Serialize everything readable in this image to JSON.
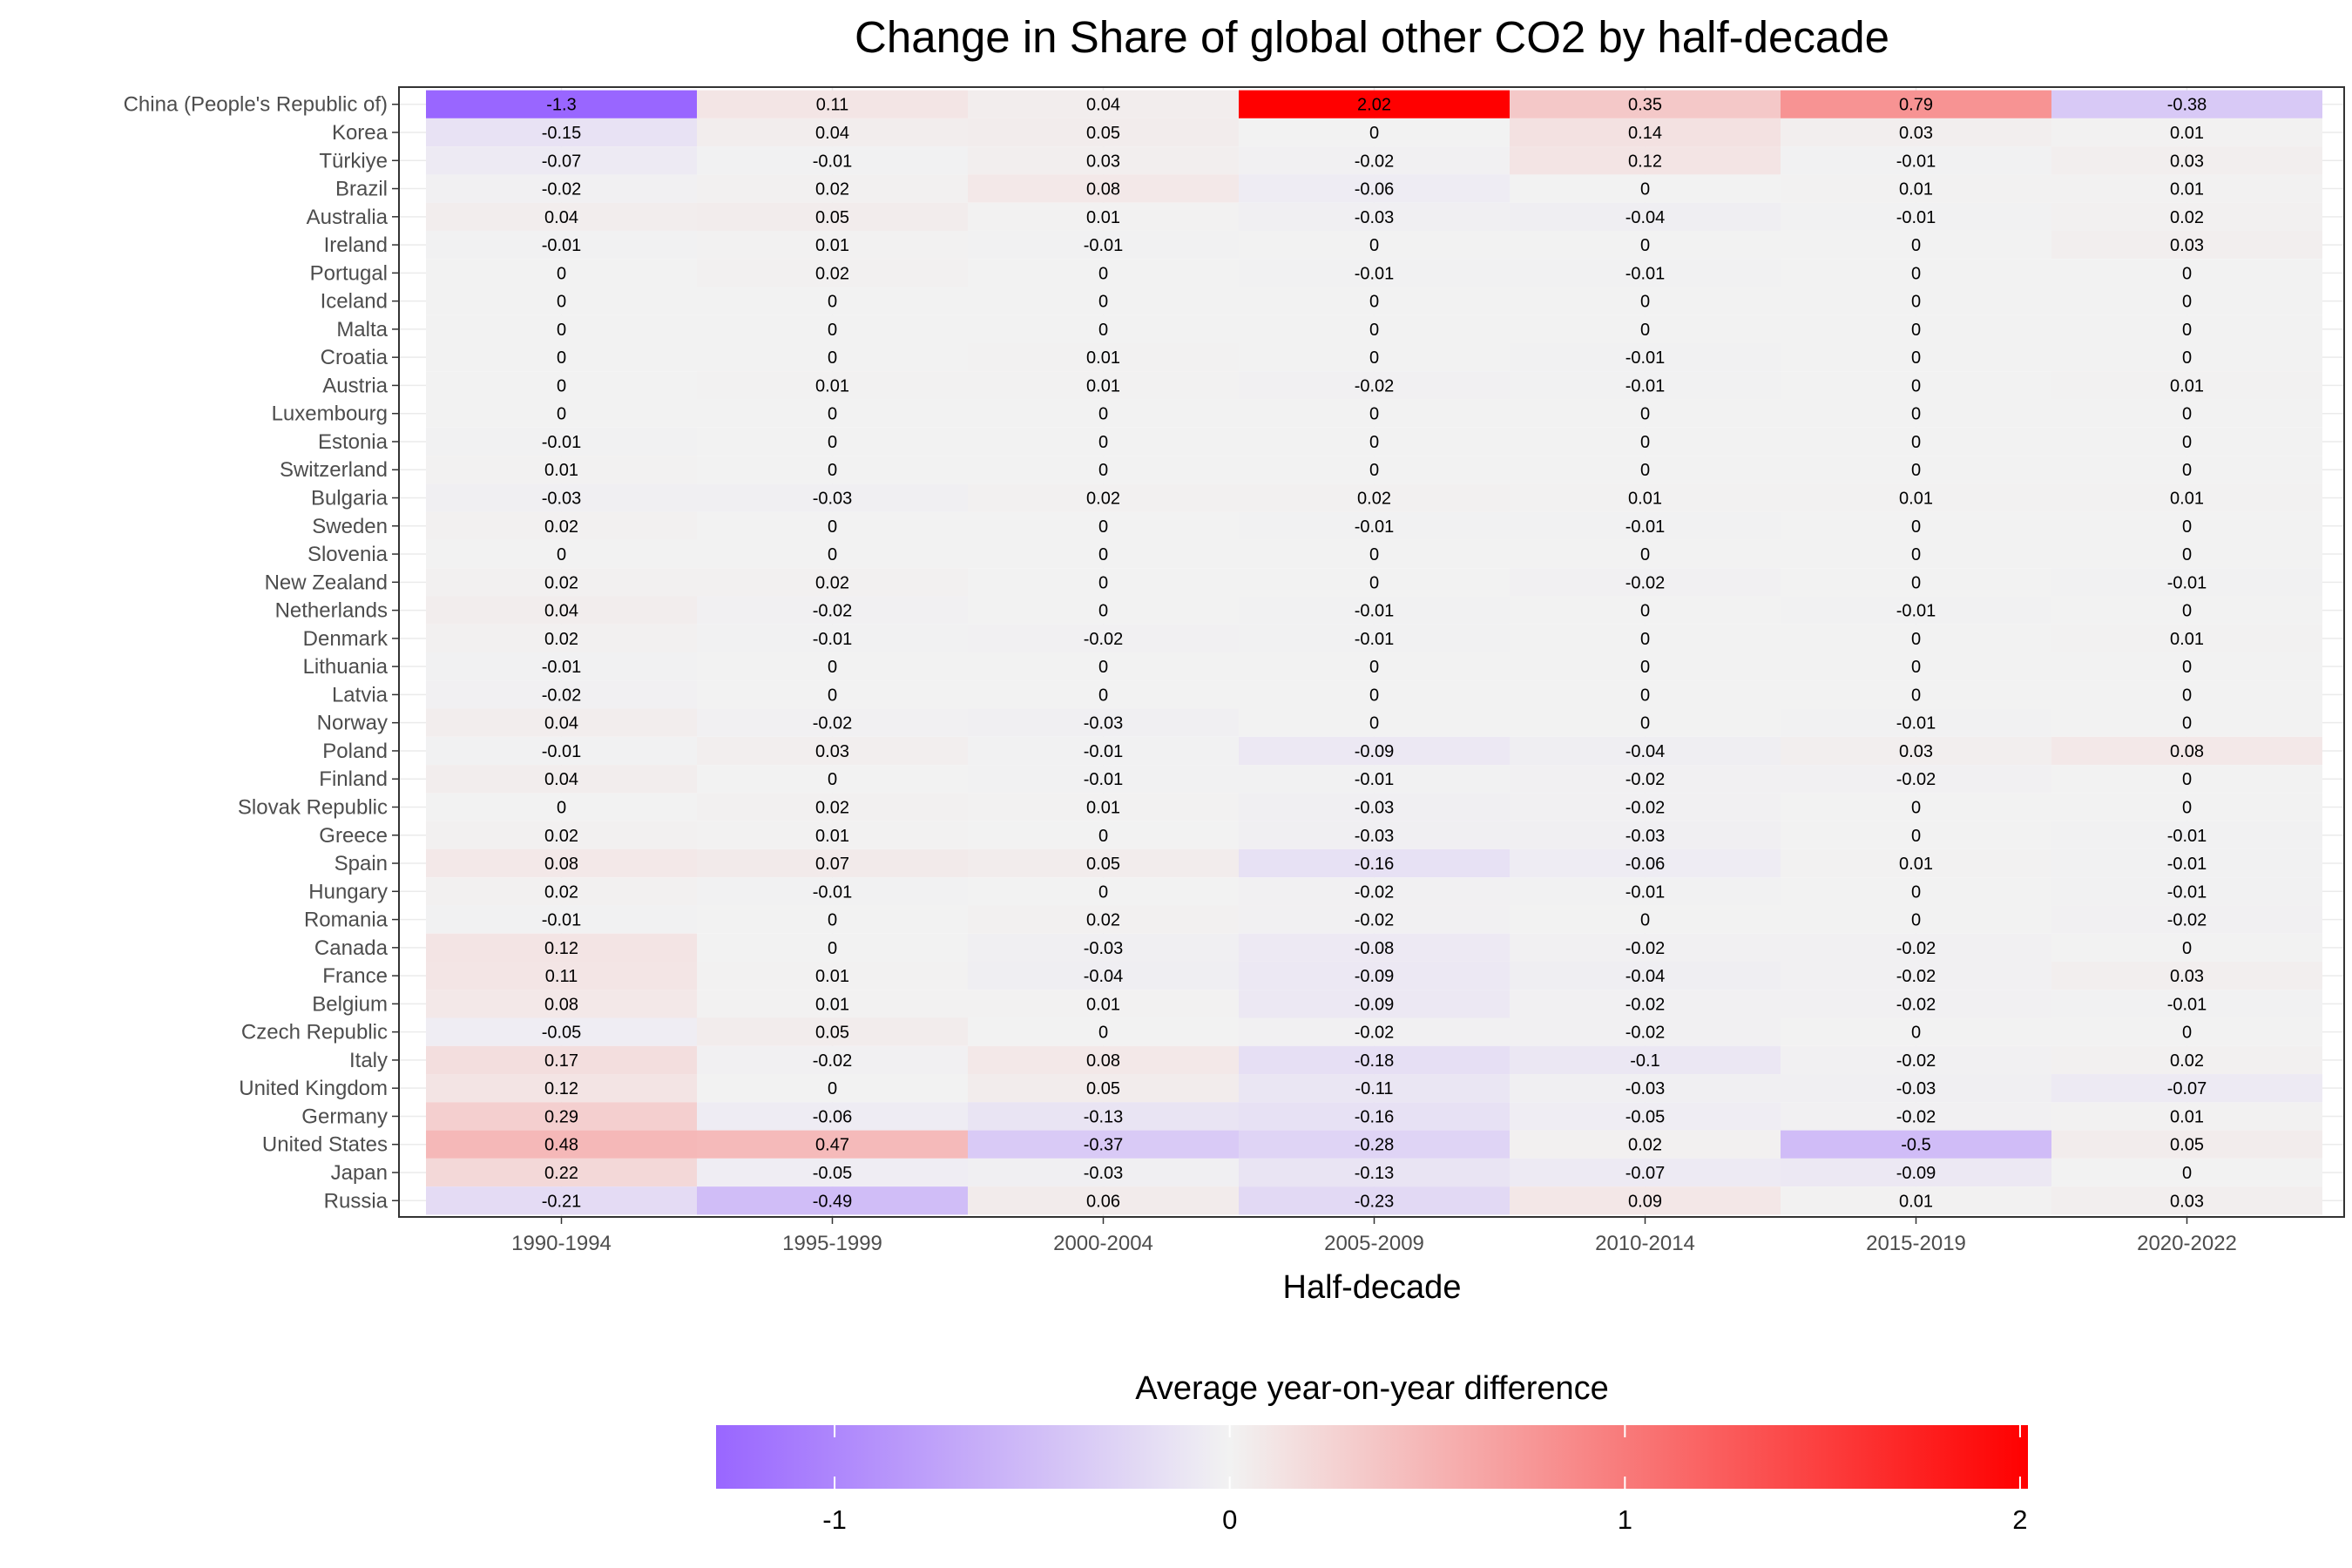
{
  "chart_data": {
    "type": "heatmap",
    "title": "Change in Share of global other CO2 by half-decade",
    "xlabel": "Half-decade",
    "ylabel": "",
    "x_categories": [
      "1990-1994",
      "1995-1999",
      "2000-2004",
      "2005-2009",
      "2010-2014",
      "2015-2019",
      "2020-2022"
    ],
    "y_categories": [
      "China (People's Republic of)",
      "Korea",
      "Türkiye",
      "Brazil",
      "Australia",
      "Ireland",
      "Portugal",
      "Iceland",
      "Malta",
      "Croatia",
      "Austria",
      "Luxembourg",
      "Estonia",
      "Switzerland",
      "Bulgaria",
      "Sweden",
      "Slovenia",
      "New Zealand",
      "Netherlands",
      "Denmark",
      "Lithuania",
      "Latvia",
      "Norway",
      "Poland",
      "Finland",
      "Slovak Republic",
      "Greece",
      "Spain",
      "Hungary",
      "Romania",
      "Canada",
      "France",
      "Belgium",
      "Czech Republic",
      "Italy",
      "United Kingdom",
      "Germany",
      "United States",
      "Japan",
      "Russia"
    ],
    "values": [
      [
        -1.3,
        0.11,
        0.04,
        2.02,
        0.35,
        0.79,
        -0.38
      ],
      [
        -0.15,
        0.04,
        0.05,
        0,
        0.14,
        0.03,
        0.01
      ],
      [
        -0.07,
        -0.01,
        0.03,
        -0.02,
        0.12,
        -0.01,
        0.03
      ],
      [
        -0.02,
        0.02,
        0.08,
        -0.06,
        0,
        0.01,
        0.01
      ],
      [
        0.04,
        0.05,
        0.01,
        -0.03,
        -0.04,
        -0.01,
        0.02
      ],
      [
        -0.01,
        0.01,
        -0.01,
        0,
        0,
        0,
        0.03
      ],
      [
        0,
        0.02,
        0,
        -0.01,
        -0.01,
        0,
        0
      ],
      [
        0,
        0,
        0,
        0,
        0,
        0,
        0
      ],
      [
        0,
        0,
        0,
        0,
        0,
        0,
        0
      ],
      [
        0,
        0,
        0.01,
        0,
        -0.01,
        0,
        0
      ],
      [
        0,
        0.01,
        0.01,
        -0.02,
        -0.01,
        0,
        0.01
      ],
      [
        0,
        0,
        0,
        0,
        0,
        0,
        0
      ],
      [
        -0.01,
        0,
        0,
        0,
        0,
        0,
        0
      ],
      [
        0.01,
        0,
        0,
        0,
        0,
        0,
        0
      ],
      [
        -0.03,
        -0.03,
        0.02,
        0.02,
        0.01,
        0.01,
        0.01
      ],
      [
        0.02,
        0,
        0,
        -0.01,
        -0.01,
        0,
        0
      ],
      [
        0,
        0,
        0,
        0,
        0,
        0,
        0
      ],
      [
        0.02,
        0.02,
        0,
        0,
        -0.02,
        0,
        -0.01
      ],
      [
        0.04,
        -0.02,
        0,
        -0.01,
        0,
        -0.01,
        0
      ],
      [
        0.02,
        -0.01,
        -0.02,
        -0.01,
        0,
        0,
        0.01
      ],
      [
        -0.01,
        0,
        0,
        0,
        0,
        0,
        0
      ],
      [
        -0.02,
        0,
        0,
        0,
        0,
        0,
        0
      ],
      [
        0.04,
        -0.02,
        -0.03,
        0,
        0,
        -0.01,
        0
      ],
      [
        -0.01,
        0.03,
        -0.01,
        -0.09,
        -0.04,
        0.03,
        0.08
      ],
      [
        0.04,
        0,
        -0.01,
        -0.01,
        -0.02,
        -0.02,
        0
      ],
      [
        0,
        0.02,
        0.01,
        -0.03,
        -0.02,
        0,
        0
      ],
      [
        0.02,
        0.01,
        0,
        -0.03,
        -0.03,
        0,
        -0.01
      ],
      [
        0.08,
        0.07,
        0.05,
        -0.16,
        -0.06,
        0.01,
        -0.01
      ],
      [
        0.02,
        -0.01,
        0,
        -0.02,
        -0.01,
        0,
        -0.01
      ],
      [
        -0.01,
        0,
        0.02,
        -0.02,
        0,
        0,
        -0.02
      ],
      [
        0.12,
        0,
        -0.03,
        -0.08,
        -0.02,
        -0.02,
        0
      ],
      [
        0.11,
        0.01,
        -0.04,
        -0.09,
        -0.04,
        -0.02,
        0.03
      ],
      [
        0.08,
        0.01,
        0.01,
        -0.09,
        -0.02,
        -0.02,
        -0.01
      ],
      [
        -0.05,
        0.05,
        0,
        -0.02,
        -0.02,
        0,
        0
      ],
      [
        0.17,
        -0.02,
        0.08,
        -0.18,
        -0.1,
        -0.02,
        0.02
      ],
      [
        0.12,
        0,
        0.05,
        -0.11,
        -0.03,
        -0.03,
        -0.07
      ],
      [
        0.29,
        -0.06,
        -0.13,
        -0.16,
        -0.05,
        -0.02,
        0.01
      ],
      [
        0.48,
        0.47,
        -0.37,
        -0.28,
        0.02,
        -0.5,
        0.05
      ],
      [
        0.22,
        -0.05,
        -0.03,
        -0.13,
        -0.07,
        -0.09,
        0
      ],
      [
        -0.21,
        -0.49,
        0.06,
        -0.23,
        0.09,
        0.01,
        0.03
      ]
    ],
    "color_scale": {
      "title": "Average year-on-year difference",
      "min": -1.3,
      "max": 2.02,
      "low_color": "#9966ff",
      "mid_color": "#f2f2f2",
      "high_color": "#ff0000",
      "ticks": [
        -1,
        0,
        1,
        2
      ]
    },
    "legend_position": "bottom",
    "grid": true
  }
}
